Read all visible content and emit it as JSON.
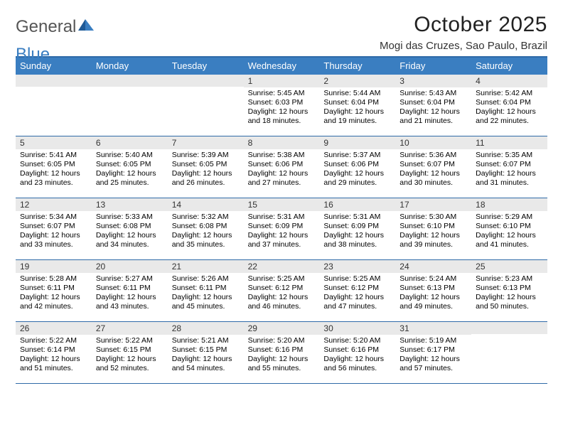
{
  "brand": {
    "part1": "General",
    "part2": "Blue"
  },
  "title": "October 2025",
  "location": "Mogi das Cruzes, Sao Paulo, Brazil",
  "colors": {
    "header_bg": "#3a7ec1",
    "header_border": "#2f6aa8",
    "daynum_bg": "#e9e9e9",
    "text": "#000000",
    "background": "#ffffff"
  },
  "day_headers": [
    "Sunday",
    "Monday",
    "Tuesday",
    "Wednesday",
    "Thursday",
    "Friday",
    "Saturday"
  ],
  "weeks": [
    [
      {
        "day": "",
        "sunrise": "",
        "sunset": "",
        "daylight1": "",
        "daylight2": ""
      },
      {
        "day": "",
        "sunrise": "",
        "sunset": "",
        "daylight1": "",
        "daylight2": ""
      },
      {
        "day": "",
        "sunrise": "",
        "sunset": "",
        "daylight1": "",
        "daylight2": ""
      },
      {
        "day": "1",
        "sunrise": "Sunrise: 5:45 AM",
        "sunset": "Sunset: 6:03 PM",
        "daylight1": "Daylight: 12 hours",
        "daylight2": "and 18 minutes."
      },
      {
        "day": "2",
        "sunrise": "Sunrise: 5:44 AM",
        "sunset": "Sunset: 6:04 PM",
        "daylight1": "Daylight: 12 hours",
        "daylight2": "and 19 minutes."
      },
      {
        "day": "3",
        "sunrise": "Sunrise: 5:43 AM",
        "sunset": "Sunset: 6:04 PM",
        "daylight1": "Daylight: 12 hours",
        "daylight2": "and 21 minutes."
      },
      {
        "day": "4",
        "sunrise": "Sunrise: 5:42 AM",
        "sunset": "Sunset: 6:04 PM",
        "daylight1": "Daylight: 12 hours",
        "daylight2": "and 22 minutes."
      }
    ],
    [
      {
        "day": "5",
        "sunrise": "Sunrise: 5:41 AM",
        "sunset": "Sunset: 6:05 PM",
        "daylight1": "Daylight: 12 hours",
        "daylight2": "and 23 minutes."
      },
      {
        "day": "6",
        "sunrise": "Sunrise: 5:40 AM",
        "sunset": "Sunset: 6:05 PM",
        "daylight1": "Daylight: 12 hours",
        "daylight2": "and 25 minutes."
      },
      {
        "day": "7",
        "sunrise": "Sunrise: 5:39 AM",
        "sunset": "Sunset: 6:05 PM",
        "daylight1": "Daylight: 12 hours",
        "daylight2": "and 26 minutes."
      },
      {
        "day": "8",
        "sunrise": "Sunrise: 5:38 AM",
        "sunset": "Sunset: 6:06 PM",
        "daylight1": "Daylight: 12 hours",
        "daylight2": "and 27 minutes."
      },
      {
        "day": "9",
        "sunrise": "Sunrise: 5:37 AM",
        "sunset": "Sunset: 6:06 PM",
        "daylight1": "Daylight: 12 hours",
        "daylight2": "and 29 minutes."
      },
      {
        "day": "10",
        "sunrise": "Sunrise: 5:36 AM",
        "sunset": "Sunset: 6:07 PM",
        "daylight1": "Daylight: 12 hours",
        "daylight2": "and 30 minutes."
      },
      {
        "day": "11",
        "sunrise": "Sunrise: 5:35 AM",
        "sunset": "Sunset: 6:07 PM",
        "daylight1": "Daylight: 12 hours",
        "daylight2": "and 31 minutes."
      }
    ],
    [
      {
        "day": "12",
        "sunrise": "Sunrise: 5:34 AM",
        "sunset": "Sunset: 6:07 PM",
        "daylight1": "Daylight: 12 hours",
        "daylight2": "and 33 minutes."
      },
      {
        "day": "13",
        "sunrise": "Sunrise: 5:33 AM",
        "sunset": "Sunset: 6:08 PM",
        "daylight1": "Daylight: 12 hours",
        "daylight2": "and 34 minutes."
      },
      {
        "day": "14",
        "sunrise": "Sunrise: 5:32 AM",
        "sunset": "Sunset: 6:08 PM",
        "daylight1": "Daylight: 12 hours",
        "daylight2": "and 35 minutes."
      },
      {
        "day": "15",
        "sunrise": "Sunrise: 5:31 AM",
        "sunset": "Sunset: 6:09 PM",
        "daylight1": "Daylight: 12 hours",
        "daylight2": "and 37 minutes."
      },
      {
        "day": "16",
        "sunrise": "Sunrise: 5:31 AM",
        "sunset": "Sunset: 6:09 PM",
        "daylight1": "Daylight: 12 hours",
        "daylight2": "and 38 minutes."
      },
      {
        "day": "17",
        "sunrise": "Sunrise: 5:30 AM",
        "sunset": "Sunset: 6:10 PM",
        "daylight1": "Daylight: 12 hours",
        "daylight2": "and 39 minutes."
      },
      {
        "day": "18",
        "sunrise": "Sunrise: 5:29 AM",
        "sunset": "Sunset: 6:10 PM",
        "daylight1": "Daylight: 12 hours",
        "daylight2": "and 41 minutes."
      }
    ],
    [
      {
        "day": "19",
        "sunrise": "Sunrise: 5:28 AM",
        "sunset": "Sunset: 6:11 PM",
        "daylight1": "Daylight: 12 hours",
        "daylight2": "and 42 minutes."
      },
      {
        "day": "20",
        "sunrise": "Sunrise: 5:27 AM",
        "sunset": "Sunset: 6:11 PM",
        "daylight1": "Daylight: 12 hours",
        "daylight2": "and 43 minutes."
      },
      {
        "day": "21",
        "sunrise": "Sunrise: 5:26 AM",
        "sunset": "Sunset: 6:11 PM",
        "daylight1": "Daylight: 12 hours",
        "daylight2": "and 45 minutes."
      },
      {
        "day": "22",
        "sunrise": "Sunrise: 5:25 AM",
        "sunset": "Sunset: 6:12 PM",
        "daylight1": "Daylight: 12 hours",
        "daylight2": "and 46 minutes."
      },
      {
        "day": "23",
        "sunrise": "Sunrise: 5:25 AM",
        "sunset": "Sunset: 6:12 PM",
        "daylight1": "Daylight: 12 hours",
        "daylight2": "and 47 minutes."
      },
      {
        "day": "24",
        "sunrise": "Sunrise: 5:24 AM",
        "sunset": "Sunset: 6:13 PM",
        "daylight1": "Daylight: 12 hours",
        "daylight2": "and 49 minutes."
      },
      {
        "day": "25",
        "sunrise": "Sunrise: 5:23 AM",
        "sunset": "Sunset: 6:13 PM",
        "daylight1": "Daylight: 12 hours",
        "daylight2": "and 50 minutes."
      }
    ],
    [
      {
        "day": "26",
        "sunrise": "Sunrise: 5:22 AM",
        "sunset": "Sunset: 6:14 PM",
        "daylight1": "Daylight: 12 hours",
        "daylight2": "and 51 minutes."
      },
      {
        "day": "27",
        "sunrise": "Sunrise: 5:22 AM",
        "sunset": "Sunset: 6:15 PM",
        "daylight1": "Daylight: 12 hours",
        "daylight2": "and 52 minutes."
      },
      {
        "day": "28",
        "sunrise": "Sunrise: 5:21 AM",
        "sunset": "Sunset: 6:15 PM",
        "daylight1": "Daylight: 12 hours",
        "daylight2": "and 54 minutes."
      },
      {
        "day": "29",
        "sunrise": "Sunrise: 5:20 AM",
        "sunset": "Sunset: 6:16 PM",
        "daylight1": "Daylight: 12 hours",
        "daylight2": "and 55 minutes."
      },
      {
        "day": "30",
        "sunrise": "Sunrise: 5:20 AM",
        "sunset": "Sunset: 6:16 PM",
        "daylight1": "Daylight: 12 hours",
        "daylight2": "and 56 minutes."
      },
      {
        "day": "31",
        "sunrise": "Sunrise: 5:19 AM",
        "sunset": "Sunset: 6:17 PM",
        "daylight1": "Daylight: 12 hours",
        "daylight2": "and 57 minutes."
      },
      {
        "day": "",
        "sunrise": "",
        "sunset": "",
        "daylight1": "",
        "daylight2": ""
      }
    ]
  ]
}
